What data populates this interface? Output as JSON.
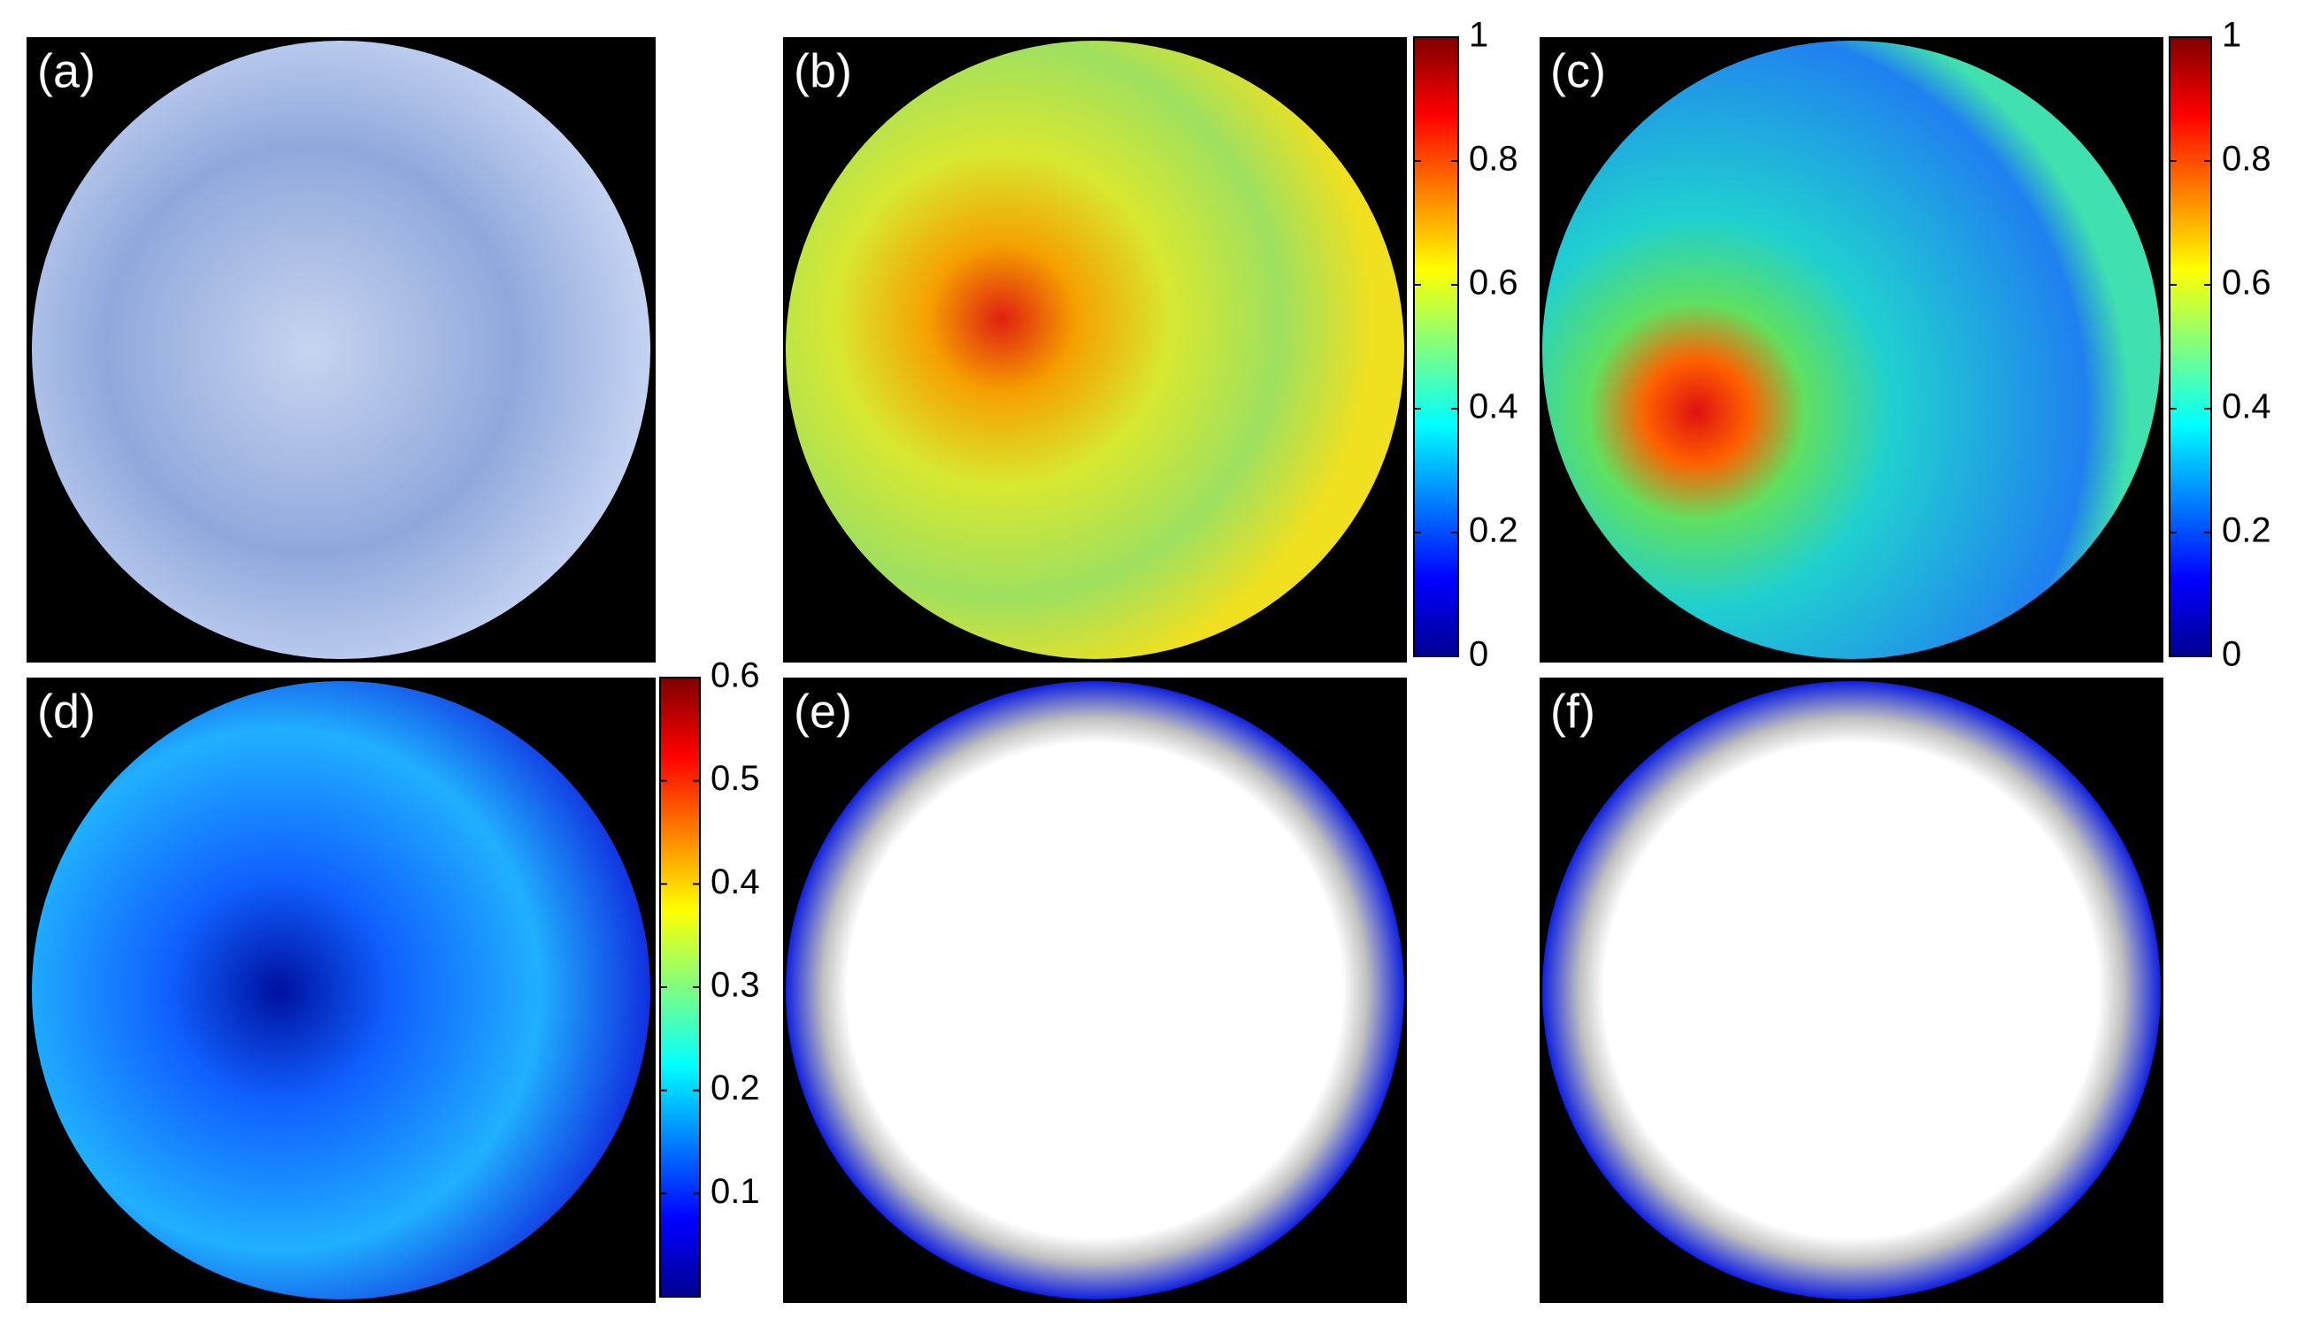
{
  "panels": [
    {
      "label": "(a)"
    },
    {
      "label": "(b)",
      "colorbar": {
        "ylim": [
          0,
          1
        ],
        "yticks": [
          0,
          0.2,
          0.4,
          0.6,
          0.8,
          1
        ]
      }
    },
    {
      "label": "(c)",
      "colorbar": {
        "ylim": [
          0,
          1
        ],
        "yticks": [
          0,
          0.2,
          0.4,
          0.6,
          0.8,
          1
        ]
      }
    },
    {
      "label": "(d)",
      "colorbar": {
        "ylim": [
          0,
          0.6
        ],
        "yticks": [
          0.1,
          0.2,
          0.3,
          0.4,
          0.5,
          0.6
        ]
      }
    },
    {
      "label": "(e)"
    },
    {
      "label": "(f)"
    }
  ]
}
